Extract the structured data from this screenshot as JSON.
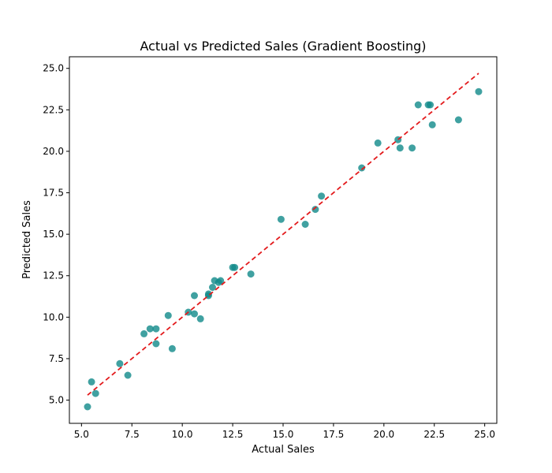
{
  "chart_data": {
    "type": "scatter",
    "title": "Actual vs Predicted Sales (Gradient Boosting)",
    "xlabel": "Actual Sales",
    "ylabel": "Predicted Sales",
    "xlim": [
      4.4,
      25.6
    ],
    "ylim": [
      3.6,
      25.7
    ],
    "xticks": [
      5.0,
      7.5,
      10.0,
      12.5,
      15.0,
      17.5,
      20.0,
      22.5,
      25.0
    ],
    "yticks": [
      5.0,
      7.5,
      10.0,
      12.5,
      15.0,
      17.5,
      20.0,
      22.5,
      25.0
    ],
    "grid": false,
    "point_color": "#108a8a",
    "reference_line": {
      "style": "dashed",
      "color": "#e31a1c",
      "from": [
        5.3,
        5.3
      ],
      "to": [
        24.7,
        24.7
      ]
    },
    "points": [
      {
        "x": 5.3,
        "y": 4.6
      },
      {
        "x": 5.5,
        "y": 6.1
      },
      {
        "x": 5.7,
        "y": 5.4
      },
      {
        "x": 6.9,
        "y": 7.2
      },
      {
        "x": 7.3,
        "y": 6.5
      },
      {
        "x": 8.1,
        "y": 9.0
      },
      {
        "x": 8.4,
        "y": 9.3
      },
      {
        "x": 8.7,
        "y": 8.4
      },
      {
        "x": 8.7,
        "y": 9.3
      },
      {
        "x": 9.3,
        "y": 10.1
      },
      {
        "x": 9.5,
        "y": 8.1
      },
      {
        "x": 10.3,
        "y": 10.3
      },
      {
        "x": 10.6,
        "y": 10.2
      },
      {
        "x": 10.6,
        "y": 11.3
      },
      {
        "x": 10.9,
        "y": 9.9
      },
      {
        "x": 11.3,
        "y": 11.3
      },
      {
        "x": 11.3,
        "y": 11.4
      },
      {
        "x": 11.5,
        "y": 11.8
      },
      {
        "x": 11.6,
        "y": 12.2
      },
      {
        "x": 11.8,
        "y": 12.1
      },
      {
        "x": 11.9,
        "y": 12.2
      },
      {
        "x": 12.5,
        "y": 13.0
      },
      {
        "x": 12.6,
        "y": 13.0
      },
      {
        "x": 13.4,
        "y": 12.6
      },
      {
        "x": 14.9,
        "y": 15.9
      },
      {
        "x": 16.1,
        "y": 15.6
      },
      {
        "x": 16.6,
        "y": 16.5
      },
      {
        "x": 16.9,
        "y": 17.3
      },
      {
        "x": 18.9,
        "y": 19.0
      },
      {
        "x": 19.7,
        "y": 20.5
      },
      {
        "x": 20.7,
        "y": 20.7
      },
      {
        "x": 20.8,
        "y": 20.2
      },
      {
        "x": 21.4,
        "y": 20.2
      },
      {
        "x": 21.7,
        "y": 22.8
      },
      {
        "x": 22.2,
        "y": 22.8
      },
      {
        "x": 22.3,
        "y": 22.8
      },
      {
        "x": 22.4,
        "y": 21.6
      },
      {
        "x": 23.7,
        "y": 21.9
      },
      {
        "x": 24.7,
        "y": 23.6
      }
    ]
  }
}
